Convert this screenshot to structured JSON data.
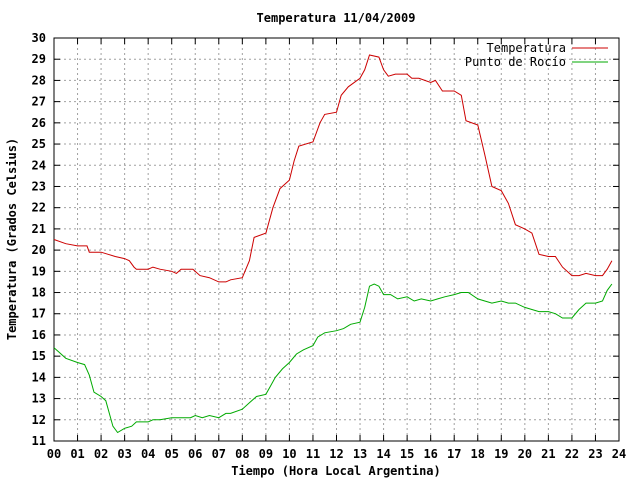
{
  "chart_data": {
    "type": "line",
    "title": "Temperatura 11/04/2009",
    "xlabel": "Tiempo (Hora Local Argentina)",
    "ylabel": "Temperatura (Grados Celsius)",
    "xlim": [
      0,
      24
    ],
    "ylim": [
      11,
      30
    ],
    "x_ticks": [
      "00",
      "01",
      "02",
      "03",
      "04",
      "05",
      "06",
      "07",
      "08",
      "09",
      "10",
      "11",
      "12",
      "13",
      "14",
      "15",
      "16",
      "17",
      "18",
      "19",
      "20",
      "21",
      "22",
      "23",
      "24"
    ],
    "y_ticks": [
      "11",
      "12",
      "13",
      "14",
      "15",
      "16",
      "17",
      "18",
      "19",
      "20",
      "21",
      "22",
      "23",
      "24",
      "25",
      "26",
      "27",
      "28",
      "29",
      "30"
    ],
    "grid": true,
    "legend_position": "top-right",
    "series": [
      {
        "name": "Temperatura",
        "color": "#cc0000",
        "points": [
          [
            0.0,
            20.5
          ],
          [
            0.5,
            20.3
          ],
          [
            1.0,
            20.2
          ],
          [
            1.4,
            20.2
          ],
          [
            1.5,
            19.9
          ],
          [
            2.0,
            19.9
          ],
          [
            2.3,
            19.8
          ],
          [
            2.6,
            19.7
          ],
          [
            3.0,
            19.6
          ],
          [
            3.2,
            19.5
          ],
          [
            3.4,
            19.2
          ],
          [
            3.5,
            19.1
          ],
          [
            4.0,
            19.1
          ],
          [
            4.2,
            19.2
          ],
          [
            4.5,
            19.1
          ],
          [
            5.0,
            19.0
          ],
          [
            5.2,
            18.9
          ],
          [
            5.4,
            19.1
          ],
          [
            5.9,
            19.1
          ],
          [
            6.2,
            18.8
          ],
          [
            6.6,
            18.7
          ],
          [
            7.0,
            18.5
          ],
          [
            7.3,
            18.5
          ],
          [
            7.5,
            18.6
          ],
          [
            8.0,
            18.7
          ],
          [
            8.3,
            19.5
          ],
          [
            8.5,
            20.6
          ],
          [
            9.0,
            20.8
          ],
          [
            9.3,
            22.0
          ],
          [
            9.6,
            22.9
          ],
          [
            10.0,
            23.3
          ],
          [
            10.2,
            24.2
          ],
          [
            10.4,
            24.9
          ],
          [
            11.0,
            25.1
          ],
          [
            11.3,
            26.0
          ],
          [
            11.5,
            26.4
          ],
          [
            12.0,
            26.5
          ],
          [
            12.2,
            27.3
          ],
          [
            12.5,
            27.7
          ],
          [
            13.0,
            28.1
          ],
          [
            13.2,
            28.5
          ],
          [
            13.4,
            29.2
          ],
          [
            13.8,
            29.1
          ],
          [
            14.0,
            28.5
          ],
          [
            14.2,
            28.2
          ],
          [
            14.5,
            28.3
          ],
          [
            15.0,
            28.3
          ],
          [
            15.2,
            28.1
          ],
          [
            15.5,
            28.1
          ],
          [
            16.0,
            27.9
          ],
          [
            16.2,
            28.0
          ],
          [
            16.5,
            27.5
          ],
          [
            17.0,
            27.5
          ],
          [
            17.3,
            27.3
          ],
          [
            17.5,
            26.1
          ],
          [
            18.0,
            25.9
          ],
          [
            18.3,
            24.5
          ],
          [
            18.6,
            23.0
          ],
          [
            19.0,
            22.8
          ],
          [
            19.3,
            22.2
          ],
          [
            19.6,
            21.2
          ],
          [
            20.0,
            21.0
          ],
          [
            20.3,
            20.8
          ],
          [
            20.6,
            19.8
          ],
          [
            21.0,
            19.7
          ],
          [
            21.3,
            19.7
          ],
          [
            21.6,
            19.2
          ],
          [
            22.0,
            18.8
          ],
          [
            22.3,
            18.8
          ],
          [
            22.6,
            18.9
          ],
          [
            23.0,
            18.8
          ],
          [
            23.3,
            18.8
          ],
          [
            23.5,
            19.1
          ],
          [
            23.7,
            19.5
          ]
        ]
      },
      {
        "name": "Punto de Rocío",
        "color": "#00aa00",
        "points": [
          [
            0.0,
            15.4
          ],
          [
            0.2,
            15.2
          ],
          [
            0.5,
            14.9
          ],
          [
            1.0,
            14.7
          ],
          [
            1.3,
            14.6
          ],
          [
            1.5,
            14.1
          ],
          [
            1.7,
            13.3
          ],
          [
            2.0,
            13.1
          ],
          [
            2.2,
            12.9
          ],
          [
            2.5,
            11.7
          ],
          [
            2.7,
            11.4
          ],
          [
            3.0,
            11.6
          ],
          [
            3.3,
            11.7
          ],
          [
            3.5,
            11.9
          ],
          [
            4.0,
            11.9
          ],
          [
            4.2,
            12.0
          ],
          [
            4.5,
            12.0
          ],
          [
            5.0,
            12.1
          ],
          [
            5.5,
            12.1
          ],
          [
            5.8,
            12.1
          ],
          [
            6.0,
            12.2
          ],
          [
            6.3,
            12.1
          ],
          [
            6.6,
            12.2
          ],
          [
            7.0,
            12.1
          ],
          [
            7.3,
            12.3
          ],
          [
            7.5,
            12.3
          ],
          [
            8.0,
            12.5
          ],
          [
            8.3,
            12.8
          ],
          [
            8.6,
            13.1
          ],
          [
            9.0,
            13.2
          ],
          [
            9.2,
            13.6
          ],
          [
            9.4,
            14.0
          ],
          [
            9.7,
            14.4
          ],
          [
            10.0,
            14.7
          ],
          [
            10.3,
            15.1
          ],
          [
            10.6,
            15.3
          ],
          [
            11.0,
            15.5
          ],
          [
            11.2,
            15.9
          ],
          [
            11.5,
            16.1
          ],
          [
            12.0,
            16.2
          ],
          [
            12.3,
            16.3
          ],
          [
            12.6,
            16.5
          ],
          [
            13.0,
            16.6
          ],
          [
            13.2,
            17.3
          ],
          [
            13.4,
            18.3
          ],
          [
            13.6,
            18.4
          ],
          [
            13.8,
            18.3
          ],
          [
            14.0,
            17.9
          ],
          [
            14.3,
            17.9
          ],
          [
            14.6,
            17.7
          ],
          [
            15.0,
            17.8
          ],
          [
            15.3,
            17.6
          ],
          [
            15.6,
            17.7
          ],
          [
            16.0,
            17.6
          ],
          [
            16.3,
            17.7
          ],
          [
            16.6,
            17.8
          ],
          [
            17.0,
            17.9
          ],
          [
            17.3,
            18.0
          ],
          [
            17.6,
            18.0
          ],
          [
            18.0,
            17.7
          ],
          [
            18.3,
            17.6
          ],
          [
            18.6,
            17.5
          ],
          [
            19.0,
            17.6
          ],
          [
            19.3,
            17.5
          ],
          [
            19.6,
            17.5
          ],
          [
            20.0,
            17.3
          ],
          [
            20.3,
            17.2
          ],
          [
            20.6,
            17.1
          ],
          [
            21.0,
            17.1
          ],
          [
            21.3,
            17.0
          ],
          [
            21.6,
            16.8
          ],
          [
            22.0,
            16.8
          ],
          [
            22.3,
            17.2
          ],
          [
            22.6,
            17.5
          ],
          [
            23.0,
            17.5
          ],
          [
            23.3,
            17.6
          ],
          [
            23.5,
            18.1
          ],
          [
            23.7,
            18.4
          ]
        ]
      }
    ]
  }
}
